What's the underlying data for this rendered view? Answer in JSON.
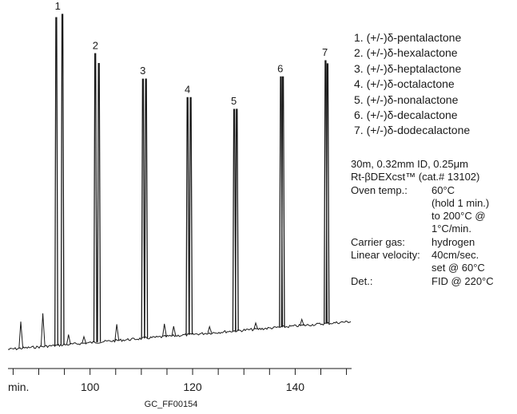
{
  "chart_data": {
    "type": "line",
    "title": "",
    "xlabel": "min.",
    "ylabel": "",
    "xlim": [
      84,
      151
    ],
    "ylim": [
      0,
      100
    ],
    "x_ticks": [
      100,
      120,
      140
    ],
    "x_tick_labels": [
      "100",
      "120",
      "140"
    ],
    "x_minor_ticks": [
      85,
      90,
      95,
      100,
      105,
      110,
      115,
      120,
      125,
      130,
      135,
      140,
      145,
      150
    ],
    "grid": false,
    "legend": "right",
    "series": [
      {
        "peaks": [
          {
            "label": "1",
            "x": 93.4,
            "height": 99
          },
          {
            "label": "1",
            "x": 94.6,
            "height": 100
          },
          {
            "label": "2",
            "x": 101.0,
            "height": 88
          },
          {
            "label": "2",
            "x": 101.7,
            "height": 85
          },
          {
            "label": "3",
            "x": 110.3,
            "height": 80
          },
          {
            "label": "3",
            "x": 110.9,
            "height": 80
          },
          {
            "label": "4",
            "x": 119.0,
            "height": 74
          },
          {
            "label": "4",
            "x": 119.6,
            "height": 74
          },
          {
            "label": "5",
            "x": 128.1,
            "height": 70
          },
          {
            "label": "5",
            "x": 128.6,
            "height": 70
          },
          {
            "label": "6",
            "x": 137.2,
            "height": 80
          },
          {
            "label": "6",
            "x": 137.6,
            "height": 80
          },
          {
            "label": "7",
            "x": 145.9,
            "height": 85
          },
          {
            "label": "7",
            "x": 146.3,
            "height": 84
          }
        ],
        "minor_peaks": [
          {
            "x": 86.5,
            "height": 8
          },
          {
            "x": 90.8,
            "height": 10
          },
          {
            "x": 95.8,
            "height": 3
          },
          {
            "x": 98.8,
            "height": 2
          },
          {
            "x": 105.2,
            "height": 5
          },
          {
            "x": 114.5,
            "height": 4
          },
          {
            "x": 116.3,
            "height": 3
          },
          {
            "x": 123.3,
            "height": 2
          },
          {
            "x": 132.3,
            "height": 2
          },
          {
            "x": 141.3,
            "height": 2
          }
        ]
      }
    ]
  },
  "peak_labels": [
    "1",
    "2",
    "3",
    "4",
    "5",
    "6",
    "7"
  ],
  "legend_items": [
    "1. (+/-)δ-pentalactone",
    "2. (+/-)δ-hexalactone",
    "3. (+/-)δ-heptalactone",
    "4. (+/-)δ-octalactone",
    "5. (+/-)δ-nonalactone",
    "6. (+/-)δ-decalactone",
    "7. (+/-)δ-dodecalactone"
  ],
  "conditions": {
    "column": "30m, 0.32mm ID, 0.25μm",
    "phase": "Rt-βDEXcst™ (cat.# 13102)",
    "rows": [
      {
        "label": "Oven temp.:",
        "value": "60°C"
      },
      {
        "label": "",
        "value": "(hold 1 min.)"
      },
      {
        "label": "",
        "value": "to 200°C @"
      },
      {
        "label": "",
        "value": "1°C/min."
      },
      {
        "label": "Carrier gas:",
        "value": "hydrogen"
      },
      {
        "label": "Linear velocity:",
        "value": "40cm/sec."
      },
      {
        "label": "",
        "value": "set @ 60°C"
      },
      {
        "label": "Det.:",
        "value": "FID @ 220°C"
      }
    ]
  },
  "footer_code": "GC_FF00154",
  "colors": {
    "trace": "#1a1a1a",
    "background": "#ffffff"
  }
}
